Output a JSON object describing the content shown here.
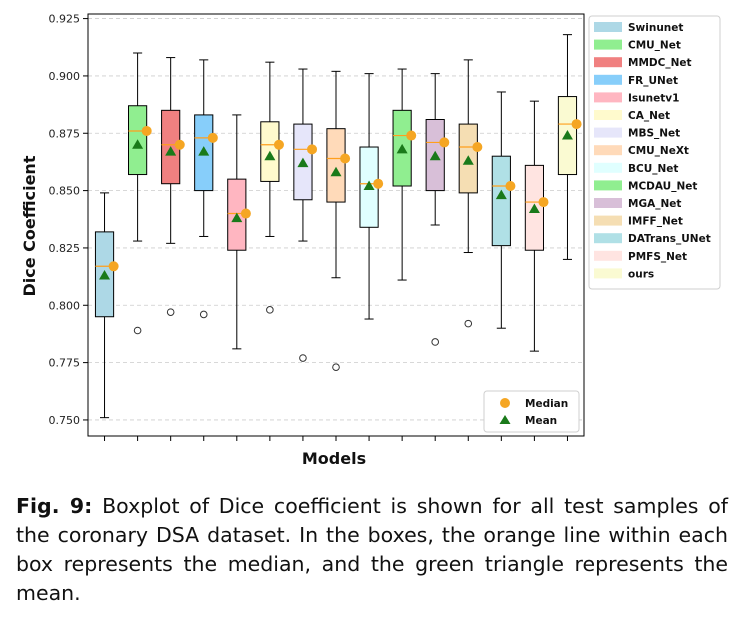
{
  "chart_data": {
    "type": "box",
    "ylabel": "Dice Coefficient",
    "xlabel": "Models",
    "ylim": [
      0.743,
      0.927
    ],
    "yticks": [
      0.75,
      0.775,
      0.8,
      0.825,
      0.85,
      0.875,
      0.9,
      0.925
    ],
    "ytick_labels": [
      "0.750",
      "0.775",
      "0.800",
      "0.825",
      "0.850",
      "0.875",
      "0.900",
      "0.925"
    ],
    "grid": "horizontal dashed",
    "legend_position": "outside-right",
    "stats_legend_position": "bottom-right",
    "stats_legend": [
      {
        "label": "Median",
        "marker": "circle",
        "color": "#f5a623"
      },
      {
        "label": "Mean",
        "marker": "triangle",
        "color": "#1a7a1a"
      }
    ],
    "series": [
      {
        "name": "Swinunet",
        "color": "#add8e6",
        "whisker_low": 0.751,
        "q1": 0.795,
        "median": 0.817,
        "q3": 0.832,
        "whisker_high": 0.849,
        "mean": 0.813,
        "outliers": []
      },
      {
        "name": "CMU_Net",
        "color": "#90ee90",
        "whisker_low": 0.828,
        "q1": 0.857,
        "median": 0.876,
        "q3": 0.887,
        "whisker_high": 0.91,
        "mean": 0.87,
        "outliers": [
          0.789
        ]
      },
      {
        "name": "MMDC_Net",
        "color": "#f08080",
        "whisker_low": 0.827,
        "q1": 0.853,
        "median": 0.87,
        "q3": 0.885,
        "whisker_high": 0.908,
        "mean": 0.867,
        "outliers": [
          0.797
        ]
      },
      {
        "name": "FR_UNet",
        "color": "#87cefa",
        "whisker_low": 0.83,
        "q1": 0.85,
        "median": 0.873,
        "q3": 0.883,
        "whisker_high": 0.907,
        "mean": 0.867,
        "outliers": [
          0.796
        ]
      },
      {
        "name": "Isunetv1",
        "color": "#ffb6c1",
        "whisker_low": 0.781,
        "q1": 0.824,
        "median": 0.84,
        "q3": 0.855,
        "whisker_high": 0.883,
        "mean": 0.838,
        "outliers": []
      },
      {
        "name": "CA_Net",
        "color": "#fffacd",
        "whisker_low": 0.83,
        "q1": 0.854,
        "median": 0.87,
        "q3": 0.88,
        "whisker_high": 0.906,
        "mean": 0.865,
        "outliers": [
          0.798
        ]
      },
      {
        "name": "MBS_Net",
        "color": "#e6e6fa",
        "whisker_low": 0.828,
        "q1": 0.846,
        "median": 0.868,
        "q3": 0.879,
        "whisker_high": 0.903,
        "mean": 0.862,
        "outliers": [
          0.777
        ]
      },
      {
        "name": "CMU_NeXt",
        "color": "#ffdab9",
        "whisker_low": 0.812,
        "q1": 0.845,
        "median": 0.864,
        "q3": 0.877,
        "whisker_high": 0.902,
        "mean": 0.858,
        "outliers": [
          0.773
        ]
      },
      {
        "name": "BCU_Net",
        "color": "#e0ffff",
        "whisker_low": 0.794,
        "q1": 0.834,
        "median": 0.853,
        "q3": 0.869,
        "whisker_high": 0.901,
        "mean": 0.852,
        "outliers": []
      },
      {
        "name": "MCDAU_Net",
        "color": "#90ee90",
        "whisker_low": 0.811,
        "q1": 0.852,
        "median": 0.874,
        "q3": 0.885,
        "whisker_high": 0.903,
        "mean": 0.868,
        "outliers": []
      },
      {
        "name": "MGA_Net",
        "color": "#d8bfd8",
        "whisker_low": 0.835,
        "q1": 0.85,
        "median": 0.871,
        "q3": 0.881,
        "whisker_high": 0.901,
        "mean": 0.865,
        "outliers": [
          0.784
        ]
      },
      {
        "name": "IMFF_Net",
        "color": "#f5deb3",
        "whisker_low": 0.823,
        "q1": 0.849,
        "median": 0.869,
        "q3": 0.879,
        "whisker_high": 0.907,
        "mean": 0.863,
        "outliers": [
          0.792
        ]
      },
      {
        "name": "DATrans_UNet",
        "color": "#b0e0e6",
        "whisker_low": 0.79,
        "q1": 0.826,
        "median": 0.852,
        "q3": 0.865,
        "whisker_high": 0.893,
        "mean": 0.848,
        "outliers": []
      },
      {
        "name": "PMFS_Net",
        "color": "#ffe4e1",
        "whisker_low": 0.78,
        "q1": 0.824,
        "median": 0.845,
        "q3": 0.861,
        "whisker_high": 0.889,
        "mean": 0.842,
        "outliers": []
      },
      {
        "name": "ours",
        "color": "#fafad2",
        "whisker_low": 0.82,
        "q1": 0.857,
        "median": 0.879,
        "q3": 0.891,
        "whisker_high": 0.918,
        "mean": 0.874,
        "outliers": []
      }
    ]
  },
  "caption": {
    "label": "Fig. 9:",
    "text": " Boxplot of Dice coefficient is shown for all test samples of the coronary DSA dataset. In the boxes, the orange line within each box represents the median, and the green triangle represents the mean."
  },
  "colors": {
    "median_marker": "#f5a623",
    "median_line": "#ff9f1c",
    "mean_marker": "#1a7a1a",
    "grid": "#cccccc",
    "outlier_edge": "#333333"
  }
}
